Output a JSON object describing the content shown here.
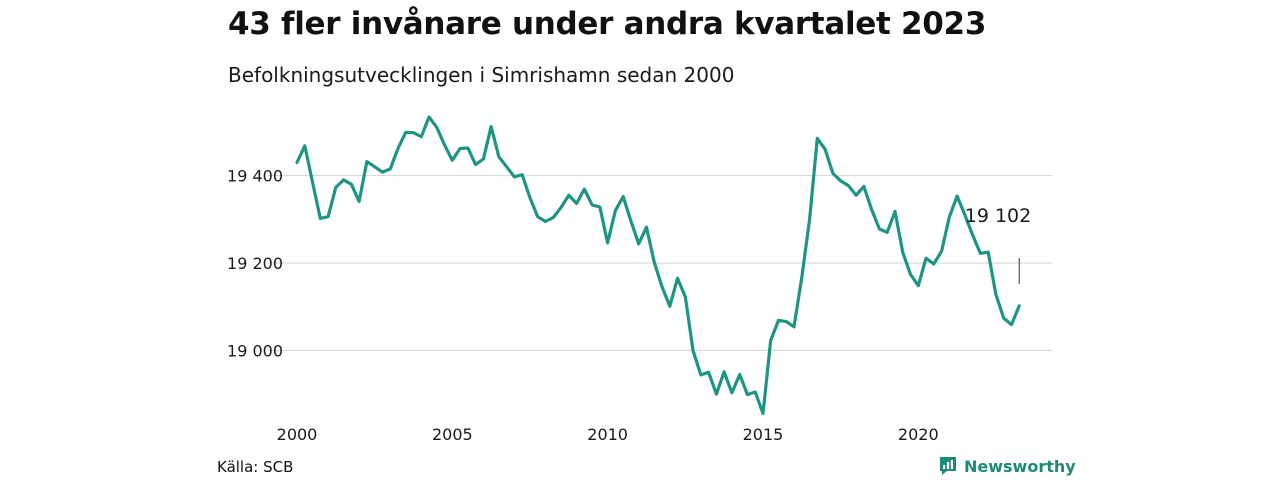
{
  "chart_data": {
    "type": "line",
    "title": "43 fler invånare under andra kvartalet 2023",
    "subtitle": "Befolkningsutvecklingen i Simrishamn sedan 2000",
    "xlabel": "",
    "ylabel": "",
    "xlim": [
      2000,
      2023.5
    ],
    "ylim": [
      18850,
      19550
    ],
    "x_ticks": [
      2000,
      2005,
      2010,
      2015,
      2020
    ],
    "x_tick_labels": [
      "2000",
      "2005",
      "2010",
      "2015",
      "2020"
    ],
    "y_ticks": [
      19000,
      19200,
      19400
    ],
    "y_tick_labels": [
      "19 000",
      "19 200",
      "19 400"
    ],
    "grid": "horizontal",
    "line_color": "#1e9583",
    "series": [
      {
        "x": [
          2000.0,
          2000.25,
          2000.5,
          2000.75,
          2001.0,
          2001.25,
          2001.5,
          2001.75,
          2002.0,
          2002.25,
          2002.5,
          2002.75,
          2003.0,
          2003.25,
          2003.5,
          2003.75,
          2004.0,
          2004.25,
          2004.5,
          2004.75,
          2005.0,
          2005.25,
          2005.5,
          2005.75,
          2006.0,
          2006.25,
          2006.5,
          2006.75,
          2007.0,
          2007.25,
          2007.5,
          2007.75,
          2008.0,
          2008.25,
          2008.5,
          2008.75,
          2009.0,
          2009.25,
          2009.5,
          2009.75,
          2010.0,
          2010.25,
          2010.5,
          2010.75,
          2011.0,
          2011.25,
          2011.5,
          2011.75,
          2012.0,
          2012.25,
          2012.5,
          2012.75,
          2013.0,
          2013.25,
          2013.5,
          2013.75,
          2014.0,
          2014.25,
          2014.5,
          2014.75,
          2015.0,
          2015.25,
          2015.5,
          2015.75,
          2016.0,
          2016.25,
          2016.5,
          2016.75,
          2017.0,
          2017.25,
          2017.5,
          2017.75,
          2018.0,
          2018.25,
          2018.5,
          2018.75,
          2019.0,
          2019.25,
          2019.5,
          2019.75,
          2020.0,
          2020.25,
          2020.5,
          2020.75,
          2021.0,
          2021.25,
          2021.5,
          2021.75,
          2022.0,
          2022.25,
          2022.5,
          2022.75,
          2023.0,
          2023.25
        ],
        "y": [
          19430,
          19468,
          19385,
          19302,
          19306,
          19373,
          19390,
          19380,
          19341,
          19432,
          19420,
          19408,
          19415,
          19462,
          19499,
          19498,
          19489,
          19534,
          19510,
          19470,
          19435,
          19462,
          19463,
          19425,
          19438,
          19512,
          19443,
          19420,
          19397,
          19402,
          19349,
          19306,
          19295,
          19304,
          19327,
          19355,
          19336,
          19369,
          19333,
          19328,
          19246,
          19320,
          19352,
          19296,
          19244,
          19282,
          19202,
          19146,
          19101,
          19165,
          19123,
          18999,
          18944,
          18950,
          18900,
          18951,
          18903,
          18945,
          18899,
          18905,
          18856,
          19023,
          19069,
          19066,
          19054,
          19167,
          19300,
          19485,
          19460,
          19405,
          19388,
          19377,
          19355,
          19375,
          19322,
          19278,
          19270,
          19318,
          19225,
          19174,
          19148,
          19211,
          19198,
          19227,
          19305,
          19353,
          19310,
          19264,
          19222,
          19225,
          19128,
          19074,
          19059,
          19102
        ]
      }
    ],
    "end_label": "19 102",
    "source": "Källa: SCB",
    "brand": "Newsworthy",
    "brand_color": "#1d8a78"
  }
}
